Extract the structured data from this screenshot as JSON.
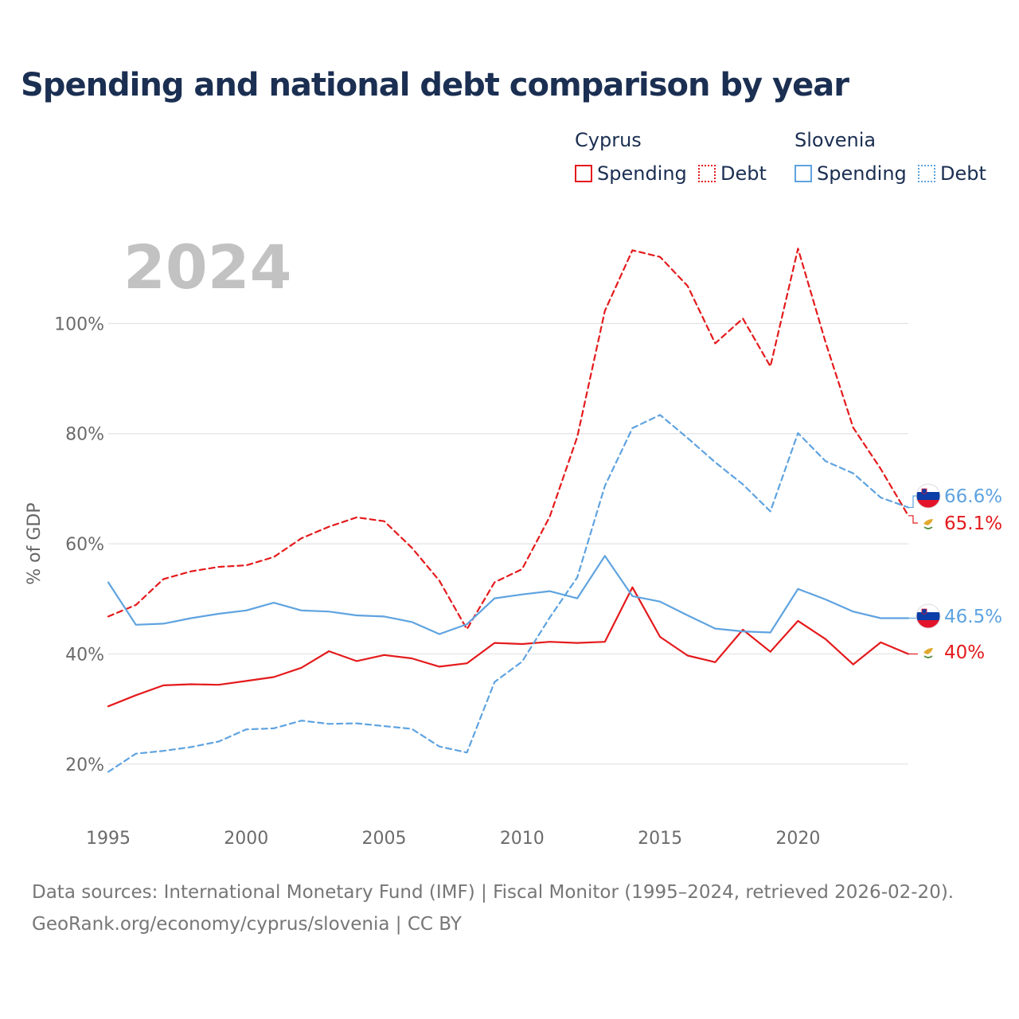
{
  "title": "Spending and national debt comparison by year",
  "legend": {
    "groups": [
      {
        "country": "Cyprus",
        "color": "#e41a1c",
        "items": [
          {
            "label": "Spending",
            "style": "solid"
          },
          {
            "label": "Debt",
            "style": "dotted"
          }
        ]
      },
      {
        "country": "Slovenia",
        "color": "#5fa3e0",
        "items": [
          {
            "label": "Spending",
            "style": "solid"
          },
          {
            "label": "Debt",
            "style": "dotted"
          }
        ]
      }
    ]
  },
  "year_label": "2024",
  "source_line1": "Data sources: International Monetary Fund (IMF) | Fiscal Monitor (1995–2024, retrieved 2026-02-20).",
  "source_line2": "GeoRank.org/economy/cyprus/slovenia | CC BY",
  "chart_data": {
    "type": "line",
    "title": "Spending and national debt comparison by year",
    "xlabel": "",
    "ylabel": "% of GDP",
    "xlim": [
      1995,
      2024
    ],
    "ylim": [
      10,
      120
    ],
    "x_ticks": [
      1995,
      2000,
      2005,
      2010,
      2015,
      2020
    ],
    "x_tick_labels": [
      "1995",
      "2000",
      "2005",
      "2010",
      "2015",
      "2020"
    ],
    "y_ticks": [
      20,
      40,
      60,
      80,
      100
    ],
    "y_tick_labels": [
      "20%",
      "40%",
      "60%",
      "80%",
      "100%"
    ],
    "grid": true,
    "x": [
      1995,
      1996,
      1997,
      1998,
      1999,
      2000,
      2001,
      2002,
      2003,
      2004,
      2005,
      2006,
      2007,
      2008,
      2009,
      2010,
      2011,
      2012,
      2013,
      2014,
      2015,
      2016,
      2017,
      2018,
      2019,
      2020,
      2021,
      2022,
      2023,
      2024
    ],
    "series": [
      {
        "name": "Cyprus Debt",
        "country": "Cyprus",
        "metric": "Debt",
        "color": "#e41a1c",
        "dashed": true,
        "end_label": "65.1%",
        "values": [
          46.8,
          48.9,
          53.6,
          55.0,
          55.8,
          56.1,
          57.6,
          61.0,
          63.1,
          64.8,
          64.1,
          59.3,
          53.3,
          44.5,
          53.0,
          55.4,
          64.9,
          79.4,
          102.3,
          113.3,
          112.1,
          106.8,
          96.4,
          100.9,
          92.2,
          113.6,
          96.6,
          81.1,
          73.6,
          65.1
        ]
      },
      {
        "name": "Cyprus Spending",
        "country": "Cyprus",
        "metric": "Spending",
        "color": "#e41a1c",
        "dashed": false,
        "end_label": "40%",
        "values": [
          30.5,
          32.5,
          34.3,
          34.5,
          34.4,
          35.1,
          35.8,
          37.5,
          40.5,
          38.7,
          39.8,
          39.2,
          37.7,
          38.3,
          42.0,
          41.8,
          42.2,
          42.0,
          42.2,
          52.1,
          43.1,
          39.7,
          38.5,
          44.4,
          40.4,
          46.0,
          42.7,
          38.1,
          42.1,
          40.0
        ]
      },
      {
        "name": "Slovenia Debt",
        "country": "Slovenia",
        "metric": "Debt",
        "color": "#5fa3e0",
        "dashed": true,
        "end_label": "66.6%",
        "values": [
          18.6,
          21.9,
          22.4,
          23.1,
          24.1,
          26.3,
          26.5,
          27.9,
          27.3,
          27.4,
          26.9,
          26.4,
          23.2,
          22.1,
          34.9,
          38.6,
          46.6,
          53.9,
          70.5,
          81.0,
          83.4,
          79.2,
          74.8,
          70.8,
          65.9,
          80.1,
          75.0,
          72.8,
          68.4,
          66.6
        ]
      },
      {
        "name": "Slovenia Spending",
        "country": "Slovenia",
        "metric": "Spending",
        "color": "#5fa3e0",
        "dashed": false,
        "end_label": "46.5%",
        "values": [
          53.0,
          45.3,
          45.5,
          46.5,
          47.3,
          47.9,
          49.3,
          47.9,
          47.7,
          47.0,
          46.8,
          45.8,
          43.6,
          45.4,
          50.1,
          50.8,
          51.4,
          50.1,
          57.8,
          50.5,
          49.5,
          47.0,
          44.6,
          44.1,
          43.9,
          51.8,
          49.9,
          47.7,
          46.5,
          46.5
        ]
      }
    ]
  }
}
